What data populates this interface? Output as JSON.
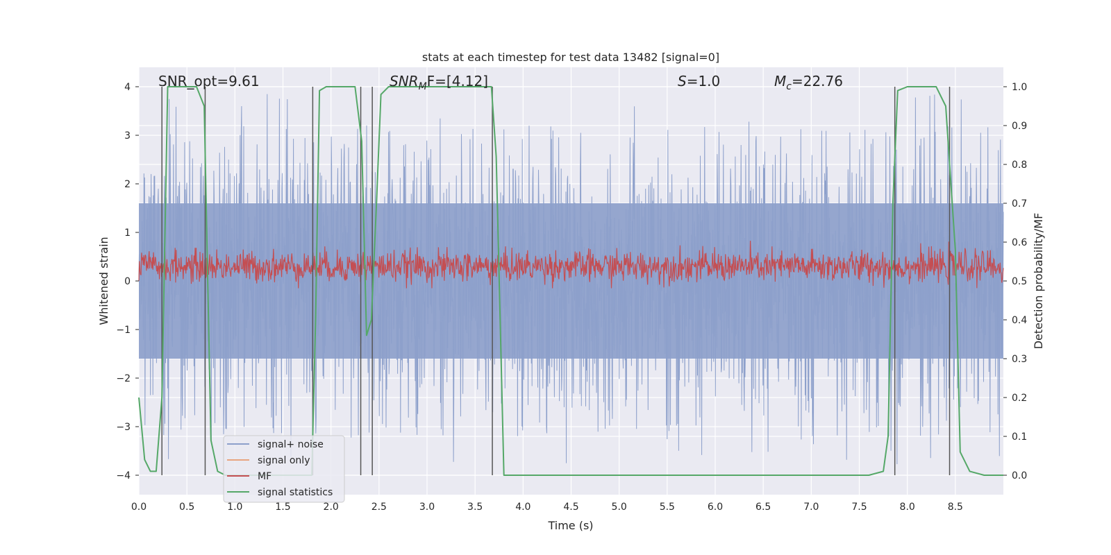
{
  "chart_data": {
    "type": "line",
    "title": "stats at each timestep for test data 13482 [signal=0]",
    "xlabel": "Time (s)",
    "ylabel": "Whitened strain",
    "y2label": "Detection probability/MF",
    "xlim": [
      0,
      9.0
    ],
    "ylim": [
      -4.4,
      4.4
    ],
    "y2lim": [
      -0.05,
      1.05
    ],
    "xticks": [
      0.0,
      0.5,
      1.0,
      1.5,
      2.0,
      2.5,
      3.0,
      3.5,
      4.0,
      4.5,
      5.0,
      5.5,
      6.0,
      6.5,
      7.0,
      7.5,
      8.0,
      8.5
    ],
    "xtick_labels": [
      "0.0",
      "0.5",
      "1.0",
      "1.5",
      "2.0",
      "2.5",
      "3.0",
      "3.5",
      "4.0",
      "4.5",
      "5.0",
      "5.5",
      "6.0",
      "6.5",
      "7.0",
      "7.5",
      "8.0",
      "8.5"
    ],
    "yticks": [
      -4,
      -3,
      -2,
      -1,
      0,
      1,
      2,
      3,
      4
    ],
    "ytick_labels": [
      "−4",
      "−3",
      "−2",
      "−1",
      "0",
      "1",
      "2",
      "3",
      "4"
    ],
    "y2ticks": [
      0.0,
      0.1,
      0.2,
      0.3,
      0.4,
      0.5,
      0.6,
      0.7,
      0.8,
      0.9,
      1.0
    ],
    "y2tick_labels": [
      "0.0",
      "0.1",
      "0.2",
      "0.3",
      "0.4",
      "0.5",
      "0.6",
      "0.7",
      "0.8",
      "0.9",
      "1.0"
    ],
    "grid": true,
    "legend_position": "lower-left",
    "annotations": {
      "snr_opt": "SNR_opt=9.61",
      "snr_mf_var": "SNR",
      "snr_mf_sub": "M",
      "snr_mf_rest": "F=[4.12]",
      "s_var": "S",
      "s_rest": "=1.0",
      "mc_var": "M",
      "mc_sub": "c",
      "mc_rest": "=22.76"
    },
    "series": [
      {
        "name": "signal+ noise",
        "color": "#8da0cb",
        "kind": "noise",
        "amplitude_typical": 1.6,
        "amplitude_peak": 3.9
      },
      {
        "name": "signal only",
        "color": "#e8a580",
        "kind": "flat",
        "values_y": 0
      },
      {
        "name": "MF",
        "color": "#c44e52",
        "kind": "mf",
        "center": 0.3,
        "range": [
          -0.15,
          0.98
        ]
      },
      {
        "name": "signal statistics",
        "color": "#55a868",
        "kind": "line",
        "x": [
          0.0,
          0.06,
          0.12,
          0.18,
          0.24,
          0.3,
          0.45,
          0.6,
          0.68,
          0.75,
          0.82,
          0.9,
          1.8,
          1.84,
          1.88,
          1.95,
          2.1,
          2.25,
          2.32,
          2.37,
          2.42,
          2.47,
          2.52,
          2.6,
          3.2,
          3.67,
          3.72,
          3.8,
          3.9,
          7.6,
          7.75,
          7.8,
          7.85,
          7.9,
          8.0,
          8.3,
          8.4,
          8.5,
          8.55,
          8.65,
          8.8,
          9.0
        ],
        "y": [
          0.2,
          0.04,
          0.01,
          0.01,
          0.2,
          1.0,
          1.0,
          1.0,
          0.95,
          0.09,
          0.01,
          0.0,
          0.0,
          0.4,
          0.99,
          1.0,
          1.0,
          1.0,
          0.86,
          0.36,
          0.4,
          0.68,
          0.98,
          1.0,
          1.0,
          1.0,
          0.82,
          0.0,
          0.0,
          0.0,
          0.01,
          0.1,
          0.7,
          0.99,
          1.0,
          1.0,
          0.95,
          0.58,
          0.06,
          0.01,
          0.0,
          0.0
        ]
      },
      {
        "name": "",
        "color": "#555555",
        "kind": "vlines",
        "x": [
          0.24,
          0.69,
          1.81,
          2.31,
          2.43,
          3.68,
          7.87,
          8.44
        ]
      }
    ]
  }
}
